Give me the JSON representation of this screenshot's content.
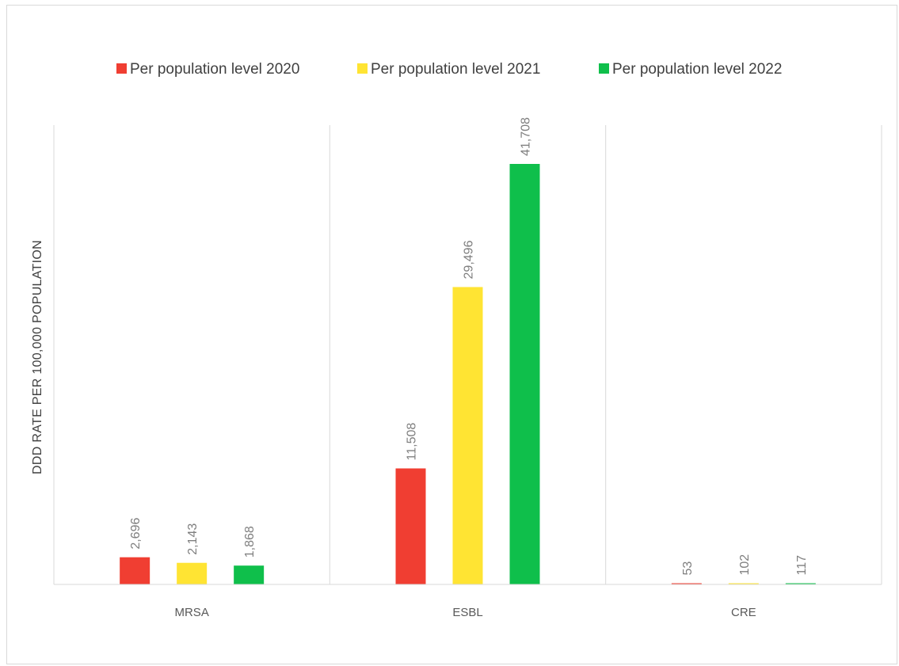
{
  "chart_data": {
    "type": "bar",
    "title": "",
    "xlabel": "",
    "ylabel": "DDD RATE PER 100,000 POPULATION",
    "categories": [
      "MRSA",
      "ESBL",
      "CRE"
    ],
    "series": [
      {
        "name": "Per population level 2020",
        "color": "#f03e32",
        "values": [
          2696,
          11508,
          53
        ],
        "labels": [
          "2,696",
          "11,508",
          "53"
        ]
      },
      {
        "name": "Per population level 2021",
        "color": "#ffe433",
        "values": [
          2143,
          29496,
          102
        ],
        "labels": [
          "2,143",
          "29,496",
          "102"
        ]
      },
      {
        "name": "Per population level 2022",
        "color": "#0fbf4b",
        "values": [
          1868,
          41708,
          117
        ],
        "labels": [
          "1,868",
          "41,708",
          "117"
        ]
      }
    ],
    "ylim": [
      0,
      45000
    ],
    "grid": false,
    "legend_position": "top"
  }
}
